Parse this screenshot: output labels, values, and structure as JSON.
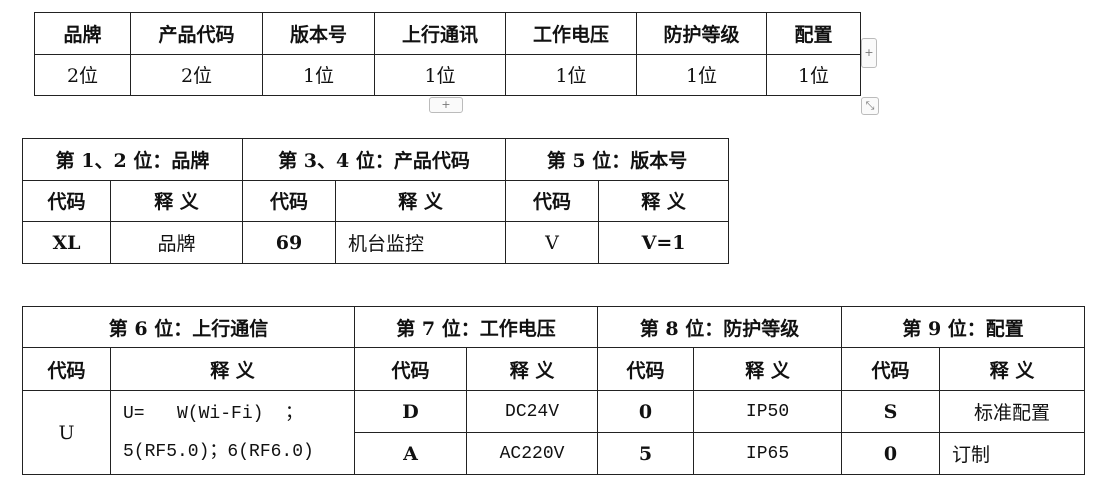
{
  "table1": {
    "headers": [
      "品牌",
      "产品代码",
      "版本号",
      "上行通讯",
      "工作电压",
      "防护等级",
      "配置"
    ],
    "values": [
      "2位",
      "2位",
      "1位",
      "1位",
      "1位",
      "1位",
      "1位"
    ]
  },
  "table2": {
    "groups": [
      "第 1、2 位：品牌",
      "第 3、4 位：产品代码",
      "第 5 位：版本号"
    ],
    "code_label": "代码",
    "meaning_label": "释 义",
    "rows": [
      [
        "XL",
        "品牌",
        "69",
        "机台监控",
        "V",
        "V=1"
      ]
    ]
  },
  "table3": {
    "groups": [
      "第 6 位：上行通信",
      "第 7 位：工作电压",
      "第 8 位：防护等级",
      "第 9 位：配置"
    ],
    "code_label": "代码",
    "meaning_label": "释 义",
    "comm": {
      "code": "U",
      "line1": "U=   W(Wi-Fi)  ；",
      "line2": "5(RF5.0)；6(RF6.0)"
    },
    "rows": [
      [
        "D",
        "DC24V",
        "0",
        "IP50",
        "S",
        "标准配置"
      ],
      [
        "A",
        "AC220V",
        "5",
        "IP65",
        "0",
        "订制"
      ]
    ]
  },
  "controls": {
    "add_col": "+",
    "add_row": "+",
    "resize": "⤡"
  }
}
